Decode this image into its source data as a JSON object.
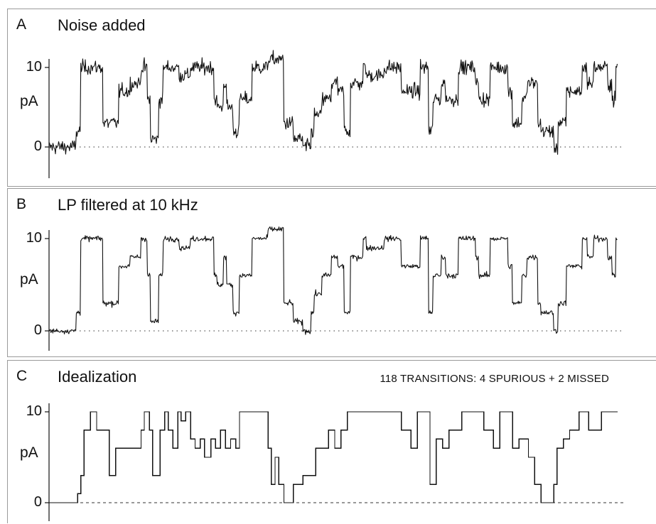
{
  "panels": [
    {
      "letter": "A",
      "title": "Noise added",
      "note": "",
      "y_ticks": [
        "10",
        "0"
      ],
      "y_unit": "pA"
    },
    {
      "letter": "B",
      "title": "LP filtered at 10 kHz",
      "note": "",
      "y_ticks": [
        "10",
        "0"
      ],
      "y_unit": "pA"
    },
    {
      "letter": "C",
      "title": "Idealization",
      "note": "118 TRANSITIONS: 4 SPURIOUS + 2 MISSED",
      "y_ticks": [
        "10",
        "0"
      ],
      "y_unit": "pA"
    }
  ],
  "chart_data": [
    {
      "type": "line",
      "title": "Noise added",
      "ylabel": "pA",
      "ylim": [
        -3,
        13
      ],
      "y_ticks": [
        0,
        10
      ],
      "grid": false,
      "baseline_dotted_at": 0,
      "series": [
        {
          "style": "noisy",
          "x": [
            0,
            3.5,
            4.3,
            5.0,
            8.5,
            9.3,
            11.0,
            12.3,
            12.8,
            13.0,
            14.5,
            15.5,
            16.0,
            17.3,
            18.0,
            20.5,
            21.3,
            22.3,
            24.0,
            26.0,
            26.5,
            27.5,
            28.0,
            29.0,
            30.0,
            32.0,
            34.0,
            34.5,
            36.5,
            37.0,
            38.5,
            40.0,
            41.3,
            41.8,
            43.0,
            44.5,
            45.5,
            46.5,
            47.5,
            49.5,
            50.0,
            52.3,
            52.8,
            55.0,
            55.5,
            57.3,
            58.5,
            59.8,
            60.5,
            61.8,
            62.5,
            64.5,
            65.0,
            67.2,
            67.7,
            69.5,
            70.5,
            72.3,
            73.0,
            74.5,
            75.3,
            77.0,
            77.5,
            79.5,
            80.2,
            81.5,
            82.5,
            84.0,
            84.8,
            85.8,
            86.5,
            88.0,
            88.7,
            89.3
          ],
          "y": [
            0,
            0,
            2,
            10,
            3,
            3,
            7,
            7,
            8,
            8,
            10,
            6,
            1,
            6,
            10,
            9,
            9,
            10,
            10,
            6,
            5,
            8,
            5,
            2,
            6,
            10,
            10,
            11,
            11,
            3,
            1,
            0,
            2,
            4,
            6,
            8,
            7,
            2,
            8,
            10,
            9,
            9,
            10,
            10,
            7,
            7,
            10,
            2,
            6,
            8,
            6,
            10,
            10,
            8,
            6,
            10,
            10,
            7,
            3,
            6,
            8,
            3,
            2,
            0,
            3,
            7,
            7,
            10,
            8,
            10,
            10,
            8,
            6,
            10
          ]
        }
      ]
    },
    {
      "type": "line",
      "title": "LP filtered at 10 kHz",
      "ylabel": "pA",
      "ylim": [
        -3,
        13
      ],
      "y_ticks": [
        0,
        10
      ],
      "grid": false,
      "baseline_dotted_at": 0,
      "series": [
        {
          "style": "noisy",
          "x": [
            0,
            3.5,
            4.3,
            5.0,
            8.5,
            9.3,
            11.0,
            12.3,
            12.8,
            13.0,
            14.5,
            15.5,
            16.0,
            17.3,
            18.0,
            20.5,
            21.3,
            22.3,
            24.0,
            26.0,
            26.5,
            27.5,
            28.0,
            29.0,
            30.0,
            32.0,
            34.0,
            34.5,
            36.5,
            37.0,
            38.5,
            40.0,
            41.3,
            41.8,
            43.0,
            44.5,
            45.5,
            46.5,
            47.5,
            49.5,
            50.0,
            52.3,
            52.8,
            55.0,
            55.5,
            57.3,
            58.5,
            59.8,
            60.5,
            61.8,
            62.5,
            64.5,
            65.0,
            67.2,
            67.7,
            69.5,
            70.5,
            72.3,
            73.0,
            74.5,
            75.3,
            77.0,
            77.5,
            79.5,
            80.2,
            81.5,
            82.5,
            84.0,
            84.8,
            85.8,
            86.5,
            88.0,
            88.7,
            89.3
          ],
          "y": [
            0,
            0,
            2,
            10,
            3,
            3,
            7,
            7,
            8,
            8,
            10,
            6,
            1,
            6,
            10,
            9,
            9,
            10,
            10,
            6,
            5,
            8,
            5,
            2,
            6,
            10,
            10,
            11,
            11,
            3,
            1,
            0,
            2,
            4,
            6,
            8,
            7,
            2,
            8,
            10,
            9,
            9,
            10,
            10,
            7,
            7,
            10,
            2,
            6,
            8,
            6,
            10,
            10,
            8,
            6,
            10,
            10,
            7,
            3,
            6,
            8,
            3,
            2,
            0,
            3,
            7,
            7,
            10,
            8,
            10,
            10,
            8,
            6,
            10
          ]
        }
      ]
    },
    {
      "type": "line",
      "title": "Idealization",
      "ylabel": "pA",
      "ylim": [
        -3,
        13
      ],
      "y_ticks": [
        0,
        10
      ],
      "grid": false,
      "baseline_dotted_at": 0,
      "series": [
        {
          "style": "step",
          "x": [
            0,
            4.5,
            5.0,
            5.5,
            6.5,
            7.5,
            9.5,
            10.0,
            10.5,
            14.5,
            15.0,
            15.8,
            16.3,
            17.5,
            18.2,
            18.8,
            19.5,
            20.3,
            20.8,
            21.5,
            22.3,
            23.0,
            23.8,
            24.5,
            25.5,
            26.2,
            27.0,
            27.8,
            28.6,
            29.4,
            30.0,
            31.0,
            34.5,
            35.0,
            35.6,
            36.2,
            37.0,
            38.5,
            40.0,
            42.0,
            44.0,
            45.0,
            46.0,
            47.0,
            48.0,
            50.0,
            55.5,
            57.0,
            58.0,
            59.0,
            60.0,
            61.0,
            62.0,
            63.0,
            65.0,
            67.0,
            68.5,
            70.0,
            71.0,
            72.3,
            73.0,
            74.0,
            75.5,
            76.5,
            77.5,
            79.5,
            80.0,
            81.0,
            82.0,
            83.5,
            84.5,
            85.0,
            87.0,
            88.5
          ],
          "y": [
            0,
            1,
            3,
            8,
            10,
            8,
            3,
            3,
            6,
            8,
            10,
            8,
            3,
            8,
            10,
            8,
            6,
            10,
            9,
            10,
            7,
            6,
            7,
            5,
            7,
            6,
            8,
            6,
            7,
            6,
            10,
            10,
            6,
            2,
            5,
            2,
            0,
            2,
            3,
            6,
            8,
            6,
            8,
            10,
            10,
            10,
            8,
            6,
            10,
            10,
            2,
            7,
            6,
            8,
            10,
            10,
            8,
            6,
            10,
            10,
            6,
            7,
            5,
            2,
            0,
            2,
            6,
            7,
            8,
            10,
            10,
            8,
            10,
            10
          ]
        }
      ]
    }
  ]
}
